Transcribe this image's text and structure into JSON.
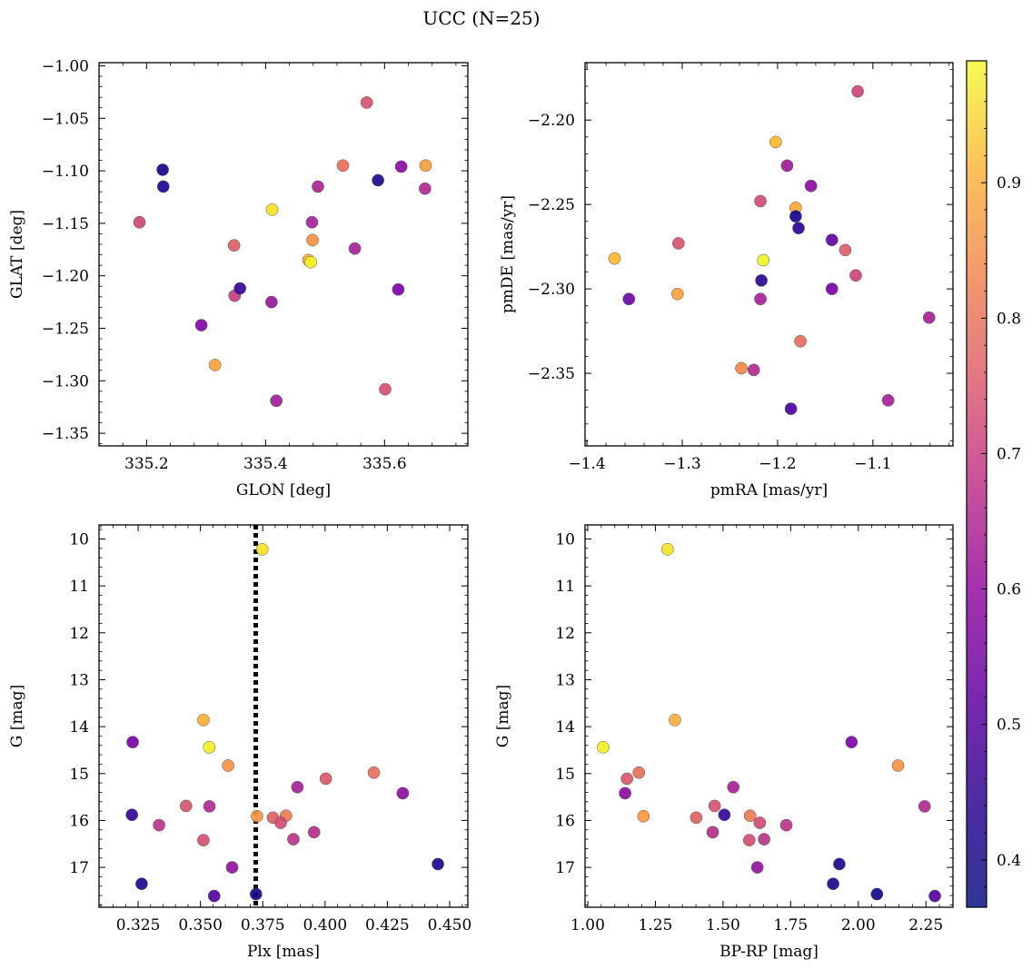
{
  "title": "UCC (N=25)",
  "colorbar": {
    "colormap": "plasma",
    "range": [
      0.365,
      0.99
    ],
    "ticks": [
      0.4,
      0.5,
      0.6,
      0.7,
      0.8,
      0.9
    ],
    "tick_labels": [
      "0.4",
      "0.5",
      "0.6",
      "0.7",
      "0.8",
      "0.9"
    ]
  },
  "chart_data": [
    {
      "type": "scatter",
      "xlabel": "GLON [deg]",
      "ylabel": "GLAT [deg]",
      "xlim": [
        335.12,
        335.74
      ],
      "ylim": [
        -1.362,
        -0.997
      ],
      "y_inverted": false,
      "xticks": [
        335.2,
        335.4,
        335.6
      ],
      "xtick_labels": [
        "335.2",
        "335.4",
        "335.6"
      ],
      "yticks": [
        -1.35,
        -1.3,
        -1.25,
        -1.2,
        -1.15,
        -1.1,
        -1.05,
        -1.0
      ],
      "ytick_labels": [
        "−1.35",
        "−1.30",
        "−1.25",
        "−1.20",
        "−1.15",
        "−1.10",
        "−1.05",
        "−1.00"
      ],
      "points": [
        {
          "x": 335.227,
          "y": -1.099,
          "c": 0.38
        },
        {
          "x": 335.228,
          "y": -1.115,
          "c": 0.39
        },
        {
          "x": 335.188,
          "y": -1.149,
          "c": 0.68
        },
        {
          "x": 335.292,
          "y": -1.247,
          "c": 0.53
        },
        {
          "x": 335.315,
          "y": -1.285,
          "c": 0.86
        },
        {
          "x": 335.347,
          "y": -1.171,
          "c": 0.73
        },
        {
          "x": 335.348,
          "y": -1.219,
          "c": 0.66
        },
        {
          "x": 335.357,
          "y": -1.212,
          "c": 0.42
        },
        {
          "x": 335.411,
          "y": -1.137,
          "c": 0.96
        },
        {
          "x": 335.41,
          "y": -1.225,
          "c": 0.57
        },
        {
          "x": 335.418,
          "y": -1.319,
          "c": 0.59
        },
        {
          "x": 335.472,
          "y": -1.185,
          "c": 0.88
        },
        {
          "x": 335.476,
          "y": -1.187,
          "c": 0.98
        },
        {
          "x": 335.478,
          "y": -1.149,
          "c": 0.6
        },
        {
          "x": 335.479,
          "y": -1.166,
          "c": 0.83
        },
        {
          "x": 335.488,
          "y": -1.115,
          "c": 0.61
        },
        {
          "x": 335.53,
          "y": -1.095,
          "c": 0.77
        },
        {
          "x": 335.55,
          "y": -1.174,
          "c": 0.6
        },
        {
          "x": 335.57,
          "y": -1.035,
          "c": 0.71
        },
        {
          "x": 335.589,
          "y": -1.109,
          "c": 0.39
        },
        {
          "x": 335.601,
          "y": -1.308,
          "c": 0.7
        },
        {
          "x": 335.623,
          "y": -1.213,
          "c": 0.52
        },
        {
          "x": 335.628,
          "y": -1.096,
          "c": 0.55
        },
        {
          "x": 335.669,
          "y": -1.095,
          "c": 0.85
        },
        {
          "x": 335.668,
          "y": -1.117,
          "c": 0.62
        }
      ]
    },
    {
      "type": "scatter",
      "xlabel": "pmRA [mas/yr]",
      "ylabel": "pmDE [mas/yr]",
      "xlim": [
        -1.402,
        -1.016
      ],
      "ylim": [
        -2.393,
        -2.166
      ],
      "y_inverted": false,
      "xticks": [
        -1.4,
        -1.3,
        -1.2,
        -1.1
      ],
      "xtick_labels": [
        "−1.4",
        "−1.3",
        "−1.2",
        "−1.1"
      ],
      "yticks": [
        -2.35,
        -2.3,
        -2.25,
        -2.2
      ],
      "ytick_labels": [
        "−2.35",
        "−2.30",
        "−2.25",
        "−2.20"
      ],
      "points": [
        {
          "x": -1.371,
          "y": -2.282,
          "c": 0.9
        },
        {
          "x": -1.356,
          "y": -2.306,
          "c": 0.5
        },
        {
          "x": -1.305,
          "y": -2.303,
          "c": 0.86
        },
        {
          "x": -1.304,
          "y": -2.273,
          "c": 0.71
        },
        {
          "x": -1.238,
          "y": -2.347,
          "c": 0.81
        },
        {
          "x": -1.225,
          "y": -2.348,
          "c": 0.62
        },
        {
          "x": -1.218,
          "y": -2.248,
          "c": 0.69
        },
        {
          "x": -1.218,
          "y": -2.306,
          "c": 0.6
        },
        {
          "x": -1.217,
          "y": -2.295,
          "c": 0.4
        },
        {
          "x": -1.215,
          "y": -2.283,
          "c": 0.98
        },
        {
          "x": -1.202,
          "y": -2.213,
          "c": 0.9
        },
        {
          "x": -1.19,
          "y": -2.227,
          "c": 0.59
        },
        {
          "x": -1.186,
          "y": -2.371,
          "c": 0.45
        },
        {
          "x": -1.181,
          "y": -2.252,
          "c": 0.87
        },
        {
          "x": -1.181,
          "y": -2.257,
          "c": 0.38
        },
        {
          "x": -1.178,
          "y": -2.264,
          "c": 0.4
        },
        {
          "x": -1.176,
          "y": -2.331,
          "c": 0.76
        },
        {
          "x": -1.165,
          "y": -2.239,
          "c": 0.55
        },
        {
          "x": -1.143,
          "y": -2.271,
          "c": 0.48
        },
        {
          "x": -1.143,
          "y": -2.3,
          "c": 0.52
        },
        {
          "x": -1.129,
          "y": -2.277,
          "c": 0.73
        },
        {
          "x": -1.118,
          "y": -2.292,
          "c": 0.68
        },
        {
          "x": -1.116,
          "y": -2.183,
          "c": 0.68
        },
        {
          "x": -1.084,
          "y": -2.366,
          "c": 0.6
        },
        {
          "x": -1.041,
          "y": -2.317,
          "c": 0.6
        }
      ]
    },
    {
      "type": "scatter",
      "xlabel": "Plx [mas]",
      "ylabel": "G [mag]",
      "xlim": [
        0.3093,
        0.4573
      ],
      "ylim": [
        17.85,
        9.7
      ],
      "y_inverted": true,
      "xticks": [
        0.325,
        0.35,
        0.375,
        0.4,
        0.425,
        0.45
      ],
      "xtick_labels": [
        "0.325",
        "0.350",
        "0.375",
        "0.400",
        "0.425",
        "0.450"
      ],
      "yticks": [
        10,
        11,
        12,
        13,
        14,
        15,
        16,
        17
      ],
      "ytick_labels": [
        "10",
        "11",
        "12",
        "13",
        "14",
        "15",
        "16",
        "17"
      ],
      "vline": {
        "x": 0.3722,
        "style": "dotted"
      },
      "points": [
        {
          "x": 0.3748,
          "y": 10.22,
          "c": 0.96
        },
        {
          "x": 0.3512,
          "y": 13.86,
          "c": 0.88
        },
        {
          "x": 0.3535,
          "y": 14.44,
          "c": 0.98
        },
        {
          "x": 0.3228,
          "y": 14.33,
          "c": 0.52
        },
        {
          "x": 0.3611,
          "y": 14.83,
          "c": 0.83
        },
        {
          "x": 0.4196,
          "y": 14.98,
          "c": 0.77
        },
        {
          "x": 0.4003,
          "y": 15.11,
          "c": 0.72
        },
        {
          "x": 0.3889,
          "y": 15.29,
          "c": 0.6
        },
        {
          "x": 0.4312,
          "y": 15.42,
          "c": 0.55
        },
        {
          "x": 0.3442,
          "y": 15.69,
          "c": 0.71
        },
        {
          "x": 0.3536,
          "y": 15.7,
          "c": 0.62
        },
        {
          "x": 0.3225,
          "y": 15.88,
          "c": 0.42
        },
        {
          "x": 0.3727,
          "y": 15.91,
          "c": 0.84
        },
        {
          "x": 0.3843,
          "y": 15.9,
          "c": 0.79
        },
        {
          "x": 0.3791,
          "y": 15.94,
          "c": 0.74
        },
        {
          "x": 0.3822,
          "y": 16.05,
          "c": 0.69
        },
        {
          "x": 0.3334,
          "y": 16.1,
          "c": 0.64
        },
        {
          "x": 0.3956,
          "y": 16.25,
          "c": 0.63
        },
        {
          "x": 0.3512,
          "y": 16.42,
          "c": 0.7
        },
        {
          "x": 0.3873,
          "y": 16.4,
          "c": 0.64
        },
        {
          "x": 0.3627,
          "y": 17.0,
          "c": 0.56
        },
        {
          "x": 0.4453,
          "y": 16.93,
          "c": 0.39
        },
        {
          "x": 0.3264,
          "y": 17.35,
          "c": 0.39
        },
        {
          "x": 0.3555,
          "y": 17.61,
          "c": 0.46
        },
        {
          "x": 0.3723,
          "y": 17.57,
          "c": 0.37
        }
      ]
    },
    {
      "type": "scatter",
      "xlabel": "BP-RP [mag]",
      "ylabel": "G [mag]",
      "xlim": [
        0.99,
        2.35
      ],
      "ylim": [
        17.85,
        9.7
      ],
      "y_inverted": true,
      "xticks": [
        1.0,
        1.25,
        1.5,
        1.75,
        2.0,
        2.25
      ],
      "xtick_labels": [
        "1.00",
        "1.25",
        "1.50",
        "1.75",
        "2.00",
        "2.25"
      ],
      "yticks": [
        10,
        11,
        12,
        13,
        14,
        15,
        16,
        17
      ],
      "ytick_labels": [
        "10",
        "11",
        "12",
        "13",
        "14",
        "15",
        "16",
        "17"
      ],
      "points": [
        {
          "x": 1.295,
          "y": 10.22,
          "c": 0.96
        },
        {
          "x": 1.322,
          "y": 13.86,
          "c": 0.88
        },
        {
          "x": 1.057,
          "y": 14.44,
          "c": 0.98
        },
        {
          "x": 1.975,
          "y": 14.33,
          "c": 0.52
        },
        {
          "x": 2.147,
          "y": 14.83,
          "c": 0.83
        },
        {
          "x": 1.189,
          "y": 14.98,
          "c": 0.77
        },
        {
          "x": 1.145,
          "y": 15.11,
          "c": 0.72
        },
        {
          "x": 1.538,
          "y": 15.29,
          "c": 0.6
        },
        {
          "x": 1.138,
          "y": 15.42,
          "c": 0.55
        },
        {
          "x": 1.469,
          "y": 15.69,
          "c": 0.71
        },
        {
          "x": 2.245,
          "y": 15.7,
          "c": 0.62
        },
        {
          "x": 1.505,
          "y": 15.88,
          "c": 0.42
        },
        {
          "x": 1.206,
          "y": 15.91,
          "c": 0.84
        },
        {
          "x": 1.6,
          "y": 15.9,
          "c": 0.79
        },
        {
          "x": 1.401,
          "y": 15.94,
          "c": 0.74
        },
        {
          "x": 1.636,
          "y": 16.05,
          "c": 0.69
        },
        {
          "x": 1.734,
          "y": 16.1,
          "c": 0.64
        },
        {
          "x": 1.462,
          "y": 16.25,
          "c": 0.63
        },
        {
          "x": 1.597,
          "y": 16.42,
          "c": 0.7
        },
        {
          "x": 1.652,
          "y": 16.4,
          "c": 0.64
        },
        {
          "x": 1.627,
          "y": 17.0,
          "c": 0.56
        },
        {
          "x": 1.93,
          "y": 16.93,
          "c": 0.39
        },
        {
          "x": 1.907,
          "y": 17.35,
          "c": 0.39
        },
        {
          "x": 2.283,
          "y": 17.61,
          "c": 0.46
        },
        {
          "x": 2.069,
          "y": 17.57,
          "c": 0.37
        }
      ]
    }
  ]
}
